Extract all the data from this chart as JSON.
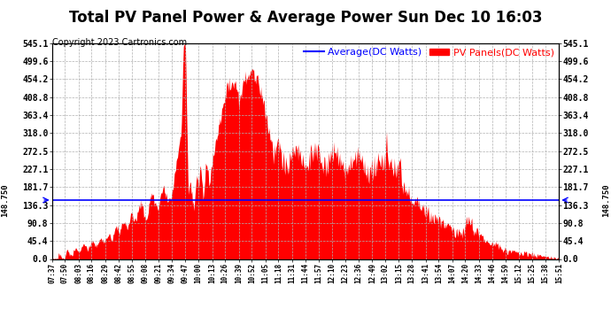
{
  "title": "Total PV Panel Power & Average Power Sun Dec 10 16:03",
  "copyright": "Copyright 2023 Cartronics.com",
  "legend_avg": "Average(DC Watts)",
  "legend_pv": "PV Panels(DC Watts)",
  "average_value": 148.75,
  "left_label": "148.750",
  "right_label": "148.750",
  "y_ticks": [
    0.0,
    45.4,
    90.8,
    136.3,
    181.7,
    227.1,
    272.5,
    318.0,
    363.4,
    408.8,
    454.2,
    499.6,
    545.1
  ],
  "ylim": [
    0.0,
    545.1
  ],
  "fill_color": "#ff0000",
  "avg_line_color": "#0000ff",
  "background_color": "#ffffff",
  "grid_color": "#b0b0b0",
  "title_fontsize": 12,
  "copyright_fontsize": 7,
  "legend_fontsize": 8,
  "tick_fontsize": 7,
  "xtick_fontsize": 5.5,
  "x_labels": [
    "07:37",
    "07:50",
    "08:03",
    "08:16",
    "08:29",
    "08:42",
    "08:55",
    "09:08",
    "09:21",
    "09:34",
    "09:47",
    "10:00",
    "10:13",
    "10:26",
    "10:39",
    "10:52",
    "11:05",
    "11:18",
    "11:31",
    "11:44",
    "11:57",
    "12:10",
    "12:23",
    "12:36",
    "12:49",
    "13:02",
    "13:15",
    "13:28",
    "13:41",
    "13:54",
    "14:07",
    "14:20",
    "14:33",
    "14:46",
    "14:59",
    "15:12",
    "15:25",
    "15:38",
    "15:51"
  ]
}
